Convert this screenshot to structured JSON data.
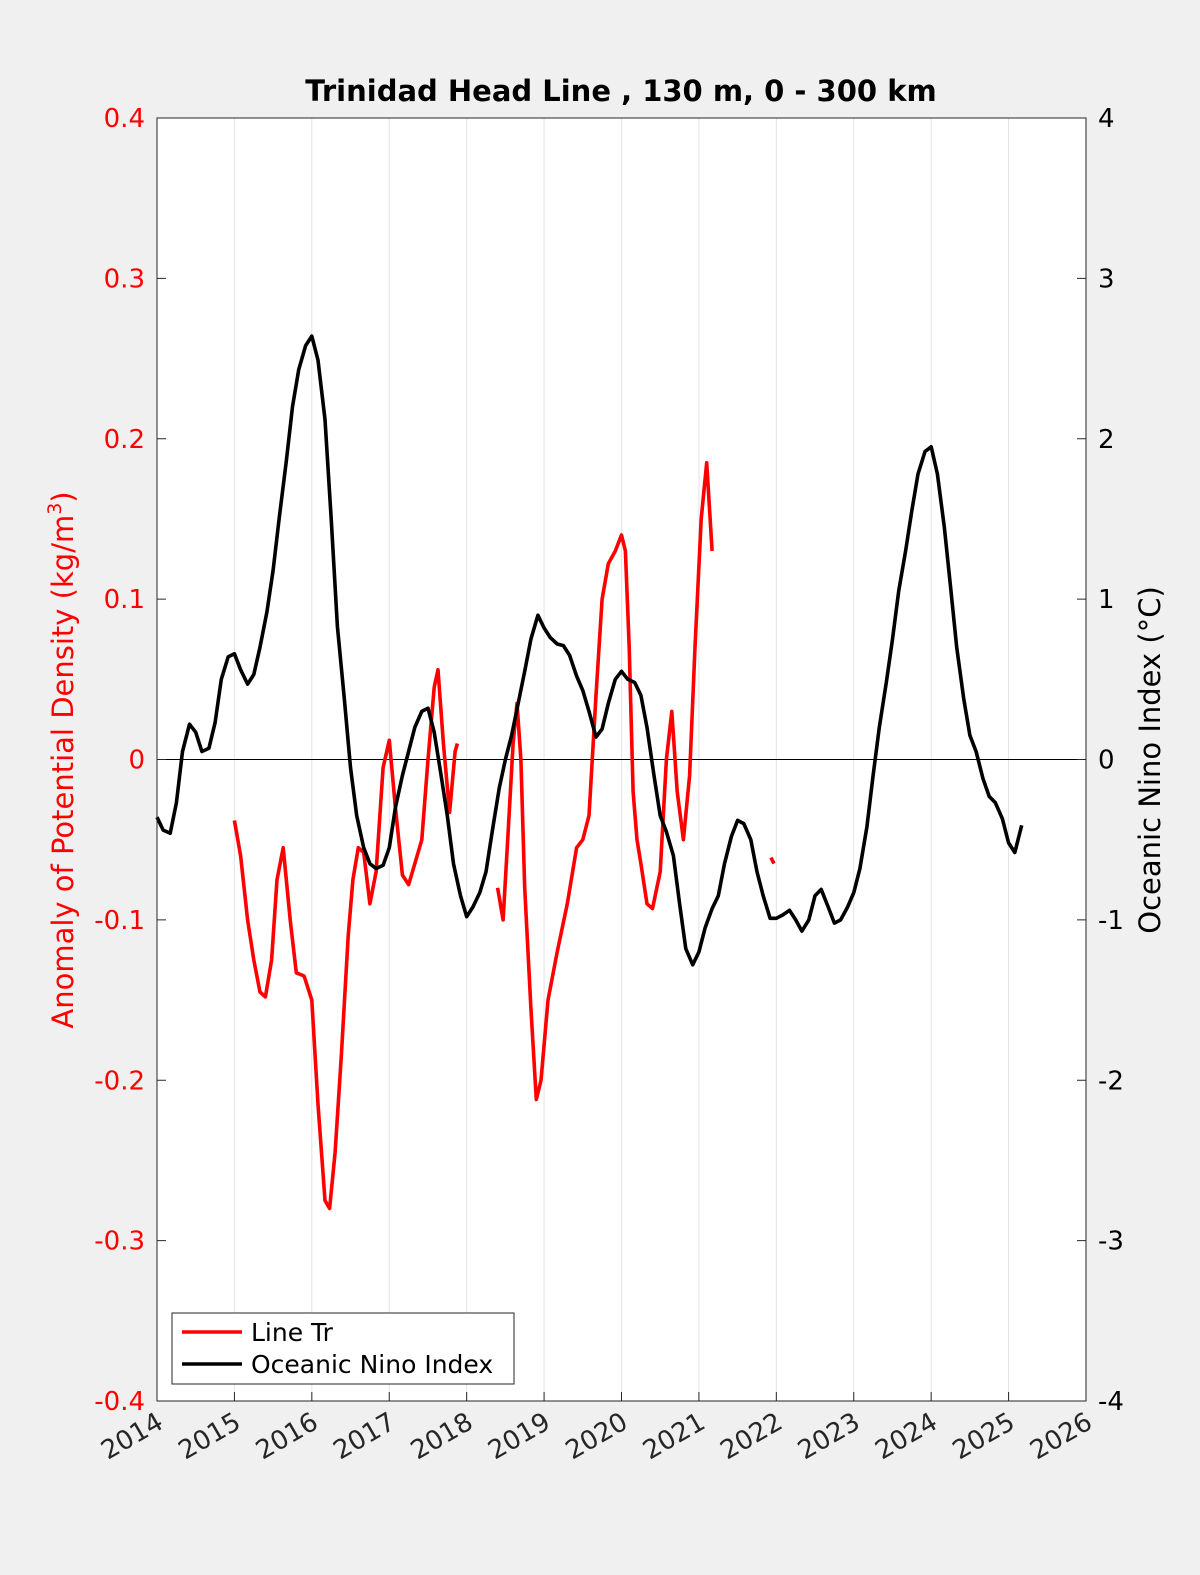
{
  "chart_data": {
    "type": "line",
    "title": "Trinidad Head Line , 130 m, 0 - 300 km",
    "ylabel_left_pre": "Anomaly of Potential Density (kg/m",
    "ylabel_left_sup": "3",
    "ylabel_left_post": ")",
    "ylabel_right": "Oceanic Nino Index (°C)",
    "xlim": [
      2014,
      2026
    ],
    "ylim_left": [
      -0.4,
      0.4
    ],
    "ylim_right": [
      -4,
      4
    ],
    "x_ticks": [
      "2014",
      "2015",
      "2016",
      "2017",
      "2018",
      "2019",
      "2020",
      "2021",
      "2022",
      "2023",
      "2024",
      "2025",
      "2026"
    ],
    "y_left_ticks": [
      "-0.4",
      "-0.3",
      "-0.2",
      "-0.1",
      "0",
      "0.1",
      "0.2",
      "0.3",
      "0.4"
    ],
    "y_right_ticks": [
      "-4",
      "-3",
      "-2",
      "-1",
      "0",
      "1",
      "2",
      "3",
      "4"
    ],
    "grid": "vertical",
    "zero_line": true,
    "legend_position": "bottom-left",
    "colors": {
      "line_tr": "#ff0000",
      "oni": "#000000",
      "left_axis": "#ff0000",
      "right_axis": "#000000"
    },
    "series": [
      {
        "name": "Line Tr",
        "axis": "left",
        "segments": [
          [
            [
              2015.0,
              -0.038
            ],
            [
              2015.08,
              -0.06
            ],
            [
              2015.17,
              -0.1
            ],
            [
              2015.25,
              -0.125
            ],
            [
              2015.33,
              -0.145
            ],
            [
              2015.4,
              -0.148
            ],
            [
              2015.48,
              -0.125
            ],
            [
              2015.55,
              -0.075
            ],
            [
              2015.63,
              -0.055
            ],
            [
              2015.72,
              -0.1
            ],
            [
              2015.8,
              -0.133
            ],
            [
              2015.9,
              -0.135
            ],
            [
              2016.0,
              -0.15
            ],
            [
              2016.08,
              -0.215
            ],
            [
              2016.17,
              -0.275
            ],
            [
              2016.23,
              -0.28
            ],
            [
              2016.3,
              -0.245
            ],
            [
              2016.38,
              -0.185
            ],
            [
              2016.47,
              -0.11
            ],
            [
              2016.53,
              -0.075
            ],
            [
              2016.6,
              -0.055
            ],
            [
              2016.67,
              -0.058
            ],
            [
              2016.75,
              -0.09
            ],
            [
              2016.83,
              -0.07
            ],
            [
              2016.92,
              -0.005
            ],
            [
              2017.0,
              0.012
            ],
            [
              2017.08,
              -0.03
            ],
            [
              2017.17,
              -0.072
            ],
            [
              2017.25,
              -0.078
            ],
            [
              2017.33,
              -0.065
            ],
            [
              2017.42,
              -0.05
            ],
            [
              2017.5,
              0.0
            ],
            [
              2017.58,
              0.045
            ],
            [
              2017.63,
              0.056
            ],
            [
              2017.7,
              0.01
            ],
            [
              2017.78,
              -0.033
            ],
            [
              2017.85,
              0.005
            ],
            [
              2017.88,
              0.01
            ]
          ],
          [
            [
              2018.4,
              -0.08
            ],
            [
              2018.47,
              -0.1
            ],
            [
              2018.53,
              -0.05
            ],
            [
              2018.6,
              0.01
            ],
            [
              2018.65,
              0.035
            ],
            [
              2018.7,
              0.0
            ],
            [
              2018.75,
              -0.08
            ],
            [
              2018.83,
              -0.155
            ],
            [
              2018.9,
              -0.212
            ],
            [
              2018.96,
              -0.2
            ],
            [
              2019.05,
              -0.15
            ],
            [
              2019.17,
              -0.12
            ],
            [
              2019.3,
              -0.09
            ],
            [
              2019.42,
              -0.055
            ],
            [
              2019.5,
              -0.05
            ],
            [
              2019.58,
              -0.035
            ],
            [
              2019.67,
              0.04
            ],
            [
              2019.75,
              0.1
            ],
            [
              2019.83,
              0.122
            ],
            [
              2019.92,
              0.13
            ],
            [
              2020.0,
              0.14
            ],
            [
              2020.05,
              0.13
            ],
            [
              2020.1,
              0.07
            ],
            [
              2020.15,
              -0.02
            ],
            [
              2020.2,
              -0.05
            ],
            [
              2020.25,
              -0.065
            ],
            [
              2020.33,
              -0.09
            ],
            [
              2020.4,
              -0.093
            ],
            [
              2020.5,
              -0.07
            ],
            [
              2020.58,
              0.0
            ],
            [
              2020.65,
              0.03
            ],
            [
              2020.72,
              -0.02
            ],
            [
              2020.8,
              -0.05
            ],
            [
              2020.88,
              -0.01
            ],
            [
              2020.95,
              0.07
            ],
            [
              2021.03,
              0.15
            ],
            [
              2021.1,
              0.185
            ],
            [
              2021.17,
              0.13
            ]
          ]
        ],
        "points": [
          [
            2021.95,
            -0.063
          ]
        ]
      },
      {
        "name": "Oceanic Nino Index",
        "axis": "right",
        "segments": [
          [
            [
              2014.0,
              -0.36
            ],
            [
              2014.08,
              -0.44
            ],
            [
              2014.17,
              -0.46
            ],
            [
              2014.25,
              -0.27
            ],
            [
              2014.33,
              0.05
            ],
            [
              2014.42,
              0.22
            ],
            [
              2014.5,
              0.17
            ],
            [
              2014.58,
              0.05
            ],
            [
              2014.67,
              0.07
            ],
            [
              2014.75,
              0.23
            ],
            [
              2014.83,
              0.5
            ],
            [
              2014.92,
              0.64
            ],
            [
              2015.0,
              0.66
            ],
            [
              2015.08,
              0.56
            ],
            [
              2015.17,
              0.47
            ],
            [
              2015.25,
              0.53
            ],
            [
              2015.33,
              0.7
            ],
            [
              2015.42,
              0.92
            ],
            [
              2015.5,
              1.18
            ],
            [
              2015.58,
              1.51
            ],
            [
              2015.67,
              1.86
            ],
            [
              2015.75,
              2.2
            ],
            [
              2015.83,
              2.43
            ],
            [
              2015.92,
              2.58
            ],
            [
              2016.0,
              2.64
            ],
            [
              2016.08,
              2.49
            ],
            [
              2016.17,
              2.12
            ],
            [
              2016.25,
              1.5
            ],
            [
              2016.33,
              0.83
            ],
            [
              2016.42,
              0.38
            ],
            [
              2016.5,
              -0.05
            ],
            [
              2016.58,
              -0.35
            ],
            [
              2016.67,
              -0.55
            ],
            [
              2016.75,
              -0.65
            ],
            [
              2016.83,
              -0.68
            ],
            [
              2016.92,
              -0.66
            ],
            [
              2017.0,
              -0.55
            ],
            [
              2017.08,
              -0.3
            ],
            [
              2017.17,
              -0.1
            ],
            [
              2017.25,
              0.05
            ],
            [
              2017.33,
              0.2
            ],
            [
              2017.42,
              0.3
            ],
            [
              2017.5,
              0.32
            ],
            [
              2017.58,
              0.17
            ],
            [
              2017.67,
              -0.1
            ],
            [
              2017.75,
              -0.35
            ],
            [
              2017.83,
              -0.65
            ],
            [
              2017.92,
              -0.85
            ],
            [
              2018.0,
              -0.98
            ],
            [
              2018.08,
              -0.92
            ],
            [
              2018.17,
              -0.83
            ],
            [
              2018.25,
              -0.7
            ],
            [
              2018.33,
              -0.45
            ],
            [
              2018.42,
              -0.18
            ],
            [
              2018.5,
              0.0
            ],
            [
              2018.58,
              0.15
            ],
            [
              2018.67,
              0.36
            ],
            [
              2018.75,
              0.55
            ],
            [
              2018.83,
              0.75
            ],
            [
              2018.92,
              0.9
            ],
            [
              2019.0,
              0.82
            ],
            [
              2019.08,
              0.76
            ],
            [
              2019.17,
              0.72
            ],
            [
              2019.25,
              0.71
            ],
            [
              2019.33,
              0.65
            ],
            [
              2019.42,
              0.52
            ],
            [
              2019.5,
              0.43
            ],
            [
              2019.58,
              0.3
            ],
            [
              2019.67,
              0.14
            ],
            [
              2019.75,
              0.19
            ],
            [
              2019.83,
              0.35
            ],
            [
              2019.92,
              0.5
            ],
            [
              2020.0,
              0.55
            ],
            [
              2020.08,
              0.5
            ],
            [
              2020.17,
              0.48
            ],
            [
              2020.25,
              0.4
            ],
            [
              2020.33,
              0.2
            ],
            [
              2020.42,
              -0.1
            ],
            [
              2020.5,
              -0.35
            ],
            [
              2020.58,
              -0.45
            ],
            [
              2020.67,
              -0.6
            ],
            [
              2020.75,
              -0.9
            ],
            [
              2020.83,
              -1.18
            ],
            [
              2020.92,
              -1.28
            ],
            [
              2021.0,
              -1.2
            ],
            [
              2021.08,
              -1.05
            ],
            [
              2021.17,
              -0.93
            ],
            [
              2021.25,
              -0.85
            ],
            [
              2021.33,
              -0.65
            ],
            [
              2021.42,
              -0.48
            ],
            [
              2021.5,
              -0.38
            ],
            [
              2021.58,
              -0.4
            ],
            [
              2021.67,
              -0.5
            ],
            [
              2021.75,
              -0.7
            ],
            [
              2021.83,
              -0.85
            ],
            [
              2021.92,
              -0.99
            ],
            [
              2022.0,
              -0.99
            ],
            [
              2022.08,
              -0.97
            ],
            [
              2022.17,
              -0.94
            ],
            [
              2022.25,
              -1.0
            ],
            [
              2022.33,
              -1.07
            ],
            [
              2022.42,
              -1.0
            ],
            [
              2022.5,
              -0.85
            ],
            [
              2022.58,
              -0.81
            ],
            [
              2022.67,
              -0.92
            ],
            [
              2022.75,
              -1.02
            ],
            [
              2022.83,
              -1.0
            ],
            [
              2022.92,
              -0.92
            ],
            [
              2023.0,
              -0.83
            ],
            [
              2023.08,
              -0.68
            ],
            [
              2023.17,
              -0.42
            ],
            [
              2023.25,
              -0.1
            ],
            [
              2023.33,
              0.2
            ],
            [
              2023.42,
              0.48
            ],
            [
              2023.5,
              0.75
            ],
            [
              2023.58,
              1.05
            ],
            [
              2023.67,
              1.3
            ],
            [
              2023.75,
              1.55
            ],
            [
              2023.83,
              1.78
            ],
            [
              2023.92,
              1.92
            ],
            [
              2024.0,
              1.95
            ],
            [
              2024.08,
              1.78
            ],
            [
              2024.17,
              1.45
            ],
            [
              2024.25,
              1.08
            ],
            [
              2024.33,
              0.7
            ],
            [
              2024.42,
              0.38
            ],
            [
              2024.5,
              0.15
            ],
            [
              2024.58,
              0.05
            ],
            [
              2024.67,
              -0.12
            ],
            [
              2024.75,
              -0.23
            ],
            [
              2024.83,
              -0.27
            ],
            [
              2024.92,
              -0.37
            ],
            [
              2025.0,
              -0.52
            ],
            [
              2025.08,
              -0.58
            ],
            [
              2025.17,
              -0.41
            ]
          ]
        ]
      }
    ],
    "legend": [
      "Line Tr",
      "Oceanic Nino Index"
    ]
  }
}
